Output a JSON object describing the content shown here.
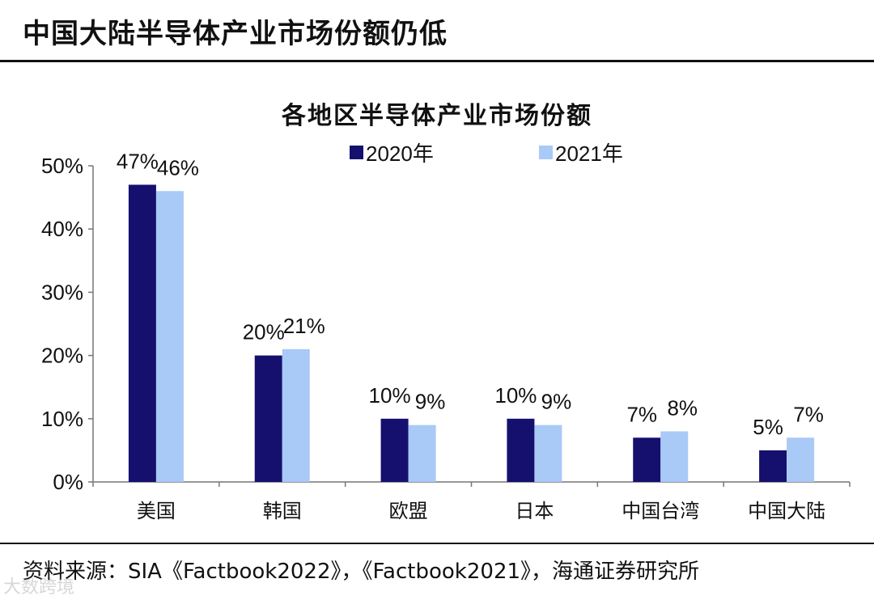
{
  "page_title": "中国大陆半导体产业市场份额仍低",
  "source_note": "资料来源：SIA《Factbook2022》，《Factbook2021》，海通证券研究所",
  "watermark": "大数跨境",
  "colors": {
    "series_2020": "#15106e",
    "series_2021": "#a9c9f7",
    "axis": "#777777"
  },
  "chart_data": {
    "type": "bar",
    "title": "各地区半导体产业市场份额",
    "xlabel": "",
    "ylabel": "",
    "ylim": [
      0,
      50
    ],
    "yticks": [
      0,
      10,
      20,
      30,
      40,
      50
    ],
    "ytick_labels": [
      "0%",
      "10%",
      "20%",
      "30%",
      "40%",
      "50%"
    ],
    "grid": false,
    "legend_position": "top-center",
    "categories": [
      "美国",
      "韩国",
      "欧盟",
      "日本",
      "中国台湾",
      "中国大陆"
    ],
    "series": [
      {
        "name": "2020年",
        "values": [
          47,
          20,
          10,
          10,
          7,
          5
        ],
        "labels": [
          "47%",
          "20%",
          "10%",
          "10%",
          "7%",
          "5%"
        ]
      },
      {
        "name": "2021年",
        "values": [
          46,
          21,
          9,
          9,
          8,
          7
        ],
        "labels": [
          "46%",
          "21%",
          "9%",
          "9%",
          "8%",
          "7%"
        ]
      }
    ]
  }
}
